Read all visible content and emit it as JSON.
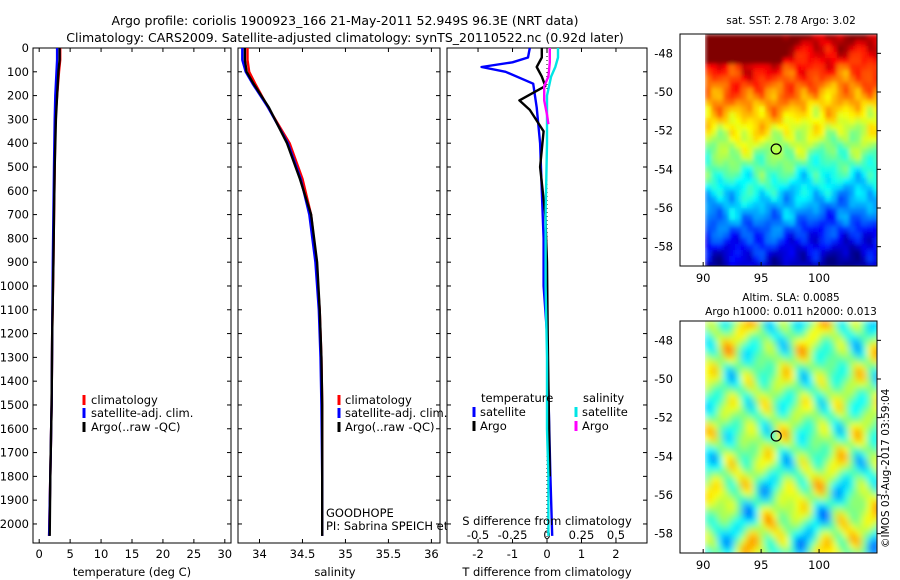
{
  "header": {
    "line1": "Argo profile: coriolis 1900923_166 21-May-2011 52.949S 96.3E (NRT data)",
    "line2": "Climatology: CARS2009. Satellite-adjusted climatology: synTS_20110522.nc (0.92d later)"
  },
  "colors": {
    "climatology": "#ff0000",
    "satellite": "#0000ff",
    "argo": "#000000",
    "salinity_satellite": "#00e5e5",
    "salinity_argo": "#ff00ff"
  },
  "chart_data": [
    {
      "type": "line",
      "name": "temperature-profile",
      "xlabel": "temperature (deg C)",
      "ylabel": "",
      "xlim": [
        -1,
        31
      ],
      "ylim": [
        2080,
        0
      ],
      "xticks": [
        0,
        5,
        10,
        15,
        20,
        25,
        30
      ],
      "yticks": [
        0,
        100,
        200,
        300,
        400,
        500,
        600,
        700,
        800,
        900,
        1000,
        1100,
        1200,
        1300,
        1400,
        1500,
        1600,
        1700,
        1800,
        1900,
        2000
      ],
      "legend": [
        "climatology",
        "satellite-adj. clim.",
        "Argo(..raw -QC)"
      ],
      "legend_position": "middle-right",
      "series": [
        {
          "name": "climatology",
          "color": "#ff0000",
          "x": [
            3.4,
            3.4,
            3.2,
            2.9,
            2.6,
            2.5,
            2.4,
            2.3,
            2.1,
            2.0,
            1.8,
            1.6
          ],
          "y": [
            0,
            50,
            100,
            200,
            300,
            500,
            700,
            900,
            1200,
            1500,
            1800,
            2050
          ]
        },
        {
          "name": "satellite-adj. clim.",
          "color": "#0000ff",
          "x": [
            2.9,
            2.9,
            2.8,
            2.6,
            2.5,
            2.4,
            2.3,
            2.2,
            2.1,
            2.0,
            1.8,
            1.6
          ],
          "y": [
            0,
            50,
            100,
            200,
            300,
            500,
            700,
            900,
            1200,
            1500,
            1800,
            2050
          ]
        },
        {
          "name": "Argo(..raw -QC)",
          "color": "#000000",
          "x": [
            3.3,
            3.3,
            3.1,
            2.9,
            2.7,
            2.5,
            2.4,
            2.3,
            2.1,
            2.0,
            1.8,
            1.7
          ],
          "y": [
            0,
            50,
            100,
            200,
            300,
            500,
            700,
            900,
            1200,
            1500,
            1800,
            2050
          ]
        }
      ]
    },
    {
      "type": "line",
      "name": "salinity-profile",
      "xlabel": "salinity",
      "xlim": [
        33.75,
        36.1
      ],
      "ylim": [
        2080,
        0
      ],
      "xticks": [
        34,
        34.5,
        35,
        35.5,
        36
      ],
      "xtick_labels": [
        "34",
        "34.5",
        "35",
        "35.5",
        "36"
      ],
      "legend": [
        "climatology",
        "satellite-adj. clim.",
        "Argo(..raw -QC)"
      ],
      "legend_position": "middle-right",
      "annotations": [
        "GOODHOPE",
        "PI: Sabrina SPEICH et Michel ARHAN"
      ],
      "series": [
        {
          "name": "climatology",
          "color": "#ff0000",
          "x": [
            33.86,
            33.86,
            33.88,
            33.95,
            34.1,
            34.35,
            34.5,
            34.6,
            34.66,
            34.7,
            34.72,
            34.73,
            34.73,
            34.73
          ],
          "y": [
            0,
            50,
            100,
            150,
            250,
            400,
            550,
            700,
            900,
            1100,
            1300,
            1500,
            1800,
            2050
          ]
        },
        {
          "name": "satellite-adj. clim.",
          "color": "#0000ff",
          "x": [
            33.8,
            33.8,
            33.84,
            33.92,
            34.1,
            34.33,
            34.48,
            34.58,
            34.65,
            34.69,
            34.71,
            34.72,
            34.73,
            34.73
          ],
          "y": [
            0,
            50,
            100,
            150,
            250,
            400,
            550,
            700,
            900,
            1100,
            1300,
            1500,
            1800,
            2050
          ]
        },
        {
          "name": "Argo(..raw -QC)",
          "color": "#000000",
          "x": [
            33.83,
            33.83,
            33.85,
            33.93,
            34.11,
            34.32,
            34.47,
            34.6,
            34.67,
            34.7,
            34.72,
            34.73,
            34.73,
            34.73
          ],
          "y": [
            0,
            50,
            100,
            150,
            250,
            400,
            550,
            700,
            900,
            1100,
            1300,
            1500,
            1800,
            2050
          ]
        }
      ]
    },
    {
      "type": "line",
      "name": "difference-from-climatology",
      "xlabel": "T difference from climatology",
      "xlabel_top": "S difference from climatology",
      "xlim": [
        -2.9,
        2.9
      ],
      "ylim": [
        2080,
        0
      ],
      "xticks": [
        -2,
        -1,
        0,
        1,
        2
      ],
      "xtick_labels": [
        "-2",
        "-1",
        "0",
        "1",
        "2"
      ],
      "sticks": [
        -0.5,
        -0.25,
        0,
        0.25,
        0.5
      ],
      "stick_labels": [
        "-0.5",
        "-0.25",
        "0",
        "0.25",
        "0.5"
      ],
      "s_scale": 4,
      "legend_titles": [
        "temperature",
        "salinity"
      ],
      "legend": [
        "satellite",
        "Argo",
        "satellite",
        "Argo"
      ],
      "legend_position": "middle",
      "series": [
        {
          "name": "satellite",
          "group": "temperature",
          "color": "#0000ff",
          "x": [
            -0.5,
            -0.55,
            -1.0,
            -1.9,
            -1.2,
            -0.4,
            -0.3,
            -0.2,
            -0.15,
            -0.1,
            -0.1,
            0.0,
            0.05,
            0.1,
            0.15
          ],
          "y": [
            0,
            40,
            60,
            80,
            100,
            150,
            250,
            400,
            600,
            800,
            1000,
            1200,
            1500,
            1800,
            2050
          ]
        },
        {
          "name": "Argo",
          "group": "temperature",
          "color": "#000000",
          "x": [
            -0.15,
            -0.15,
            -0.3,
            -0.15,
            -0.05,
            -0.8,
            -0.5,
            -0.1,
            -0.2,
            -0.05,
            0.0,
            0.02,
            0.05,
            0.08
          ],
          "y": [
            0,
            40,
            80,
            120,
            160,
            220,
            260,
            350,
            500,
            700,
            900,
            1200,
            1500,
            1800
          ]
        },
        {
          "name": "satellite",
          "group": "salinity",
          "color": "#00e5e5",
          "x": [
            0.08,
            0.08,
            0.06,
            0.03,
            0.0,
            0.0,
            -0.01,
            -0.01,
            0.0,
            0.0,
            0.01,
            0.01
          ],
          "y": [
            0,
            40,
            80,
            120,
            200,
            400,
            700,
            1000,
            1300,
            1600,
            1800,
            2050
          ]
        },
        {
          "name": "Argo",
          "group": "salinity",
          "color": "#ff00ff",
          "x": [
            0.02,
            0.02,
            0.01,
            -0.02,
            -0.02,
            0.0,
            0.01
          ],
          "y": [
            0,
            60,
            120,
            160,
            220,
            280,
            320
          ]
        }
      ]
    },
    {
      "type": "heatmap",
      "name": "sst-map",
      "title": "sat. SST: 2.78 Argo: 3.02",
      "xlim": [
        88,
        105
      ],
      "ylim": [
        -59,
        -47
      ],
      "xticks": [
        90,
        95,
        100
      ],
      "yticks": [
        -48,
        -50,
        -52,
        -54,
        -56,
        -58
      ],
      "marker": {
        "lon": 96.3,
        "lat": -52.949
      }
    },
    {
      "type": "heatmap",
      "name": "sla-map",
      "title": "Altim. SLA: 0.0085",
      "subtitle": "Argo h1000: 0.011 h2000: 0.013",
      "xlim": [
        88,
        105
      ],
      "ylim": [
        -59,
        -47
      ],
      "xticks": [
        90,
        95,
        100
      ],
      "yticks": [
        -48,
        -50,
        -52,
        -54,
        -56,
        -58
      ],
      "marker": {
        "lon": 96.3,
        "lat": -52.949
      }
    }
  ],
  "watermark": "©IMOS 03-Aug-2017 03:59:04"
}
